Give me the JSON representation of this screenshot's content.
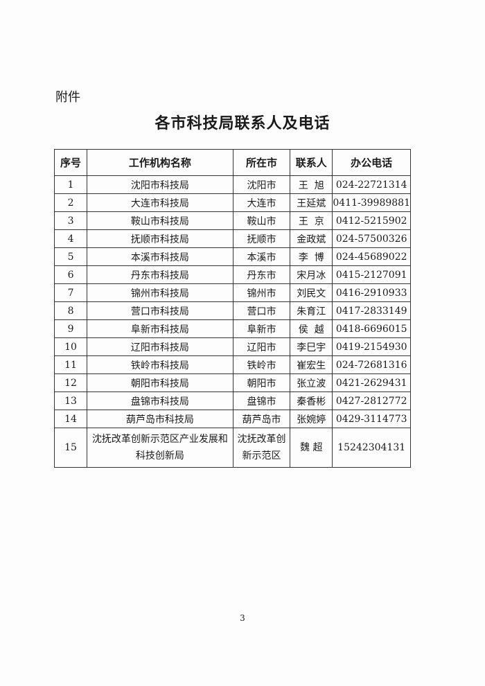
{
  "attachment_label": "附件",
  "title": "各市科技局联系人及电话",
  "table": {
    "headers": [
      "序号",
      "工作机构名称",
      "所在市",
      "联系人",
      "办公电话"
    ],
    "rows": [
      [
        "1",
        "沈阳市科技局",
        "沈阳市",
        "王  旭",
        "024-22721314"
      ],
      [
        "2",
        "大连市科技局",
        "大连市",
        "王延斌",
        "0411-39989881"
      ],
      [
        "3",
        "鞍山市科技局",
        "鞍山市",
        "王  京",
        "0412-5215902"
      ],
      [
        "4",
        "抚顺市科技局",
        "抚顺市",
        "金政斌",
        "024-57500326"
      ],
      [
        "5",
        "本溪市科技局",
        "本溪市",
        "李  博",
        "024-45689022"
      ],
      [
        "6",
        "丹东市科技局",
        "丹东市",
        "宋月冰",
        "0415-2127091"
      ],
      [
        "7",
        "锦州市科技局",
        "锦州市",
        "刘民文",
        "0416-2910933"
      ],
      [
        "8",
        "营口市科技局",
        "营口市",
        "朱育江",
        "0417-2833149"
      ],
      [
        "9",
        "阜新市科技局",
        "阜新市",
        "侯  越",
        "0418-6696015"
      ],
      [
        "10",
        "辽阳市科技局",
        "辽阳市",
        "李巳宇",
        "0419-2154930"
      ],
      [
        "11",
        "铁岭市科技局",
        "铁岭市",
        "崔宏生",
        "024-72681316"
      ],
      [
        "12",
        "朝阳市科技局",
        "朝阳市",
        "张立波",
        "0421-2629431"
      ],
      [
        "13",
        "盘锦市科技局",
        "盘锦市",
        "秦香彬",
        "0427-2812772"
      ],
      [
        "14",
        "葫芦岛市科技局",
        "葫芦岛市",
        "张婉婷",
        "0429-3114773"
      ],
      [
        "15",
        "沈抚改革创新示范区产业发展和科技创新局",
        "沈抚改革创新示范区",
        "魏  超",
        "15242304131"
      ]
    ]
  },
  "page_number": "3"
}
